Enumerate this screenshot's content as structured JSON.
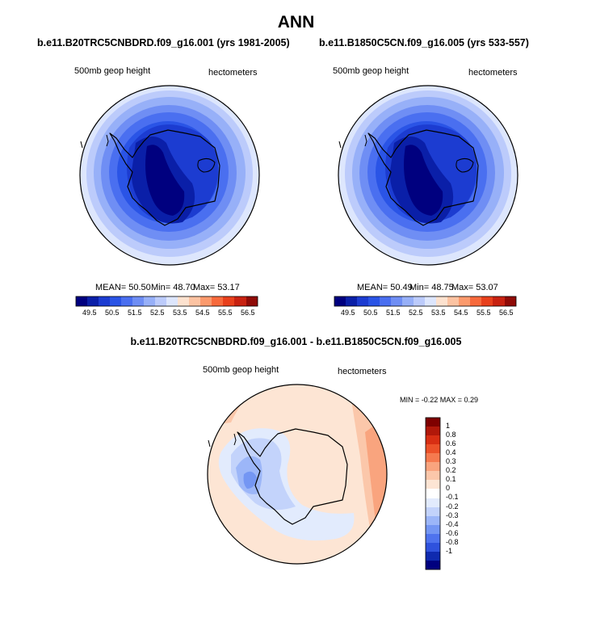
{
  "figure": {
    "title": "ANN"
  },
  "colors": {
    "blue_scale": [
      "#00007f",
      "#0a1fa8",
      "#1c3cd1",
      "#2a54e6",
      "#4a6ff0",
      "#6f8ef4",
      "#97b0f8",
      "#bccbfb",
      "#dde6fd"
    ],
    "warm_scale": [
      "#fde2cf",
      "#fcc3a2",
      "#fb9a6d",
      "#f76a3c",
      "#e8401c",
      "#c82211",
      "#8f0b07"
    ],
    "diff_scale": [
      "#00007f",
      "#0f2aaf",
      "#2f52dd",
      "#4f73ee",
      "#7496f3",
      "#9cb6f8",
      "#c3d3fb",
      "#e2ebfd",
      "#ffffff",
      "#fde5d4",
      "#fbc7aa",
      "#f9a47e",
      "#f57a4f",
      "#ec5129",
      "#d82e13",
      "#b1180a",
      "#7f0000"
    ]
  },
  "panels": [
    {
      "title": "b.e11.B20TRC5CNBDRD.f09_g16.001 (yrs 1981-2005)",
      "variable": "500mb geop height",
      "units": "hectometers",
      "stats": {
        "mean": "MEAN=  50.50",
        "min": "Min=  48.70",
        "max": "Max=  53.17"
      },
      "colorbar_ticks": [
        "49.5",
        "50.5",
        "51.5",
        "52.5",
        "53.5",
        "54.5",
        "55.5",
        "56.5"
      ]
    },
    {
      "title": "b.e11.B1850C5CN.f09_g16.005 (yrs 533-557)",
      "variable": "500mb geop height",
      "units": "hectometers",
      "stats": {
        "mean": "MEAN=  50.49",
        "min": "Min=  48.75",
        "max": "Max=  53.07"
      },
      "colorbar_ticks": [
        "49.5",
        "50.5",
        "51.5",
        "52.5",
        "53.5",
        "54.5",
        "55.5",
        "56.5"
      ]
    }
  ],
  "difference": {
    "title": "b.e11.B20TRC5CNBDRD.f09_g16.001 - b.e11.B1850C5CN.f09_g16.005",
    "variable": "500mb geop height",
    "units": "hectometers",
    "minmax": "MIN =  -0.22 MAX =   0.29",
    "colorbar_labels": [
      "1",
      "0.8",
      "0.6",
      "0.4",
      "0.3",
      "0.2",
      "0.1",
      "0",
      "-0.1",
      "-0.2",
      "-0.3",
      "-0.4",
      "-0.6",
      "-0.8",
      "-1"
    ]
  }
}
